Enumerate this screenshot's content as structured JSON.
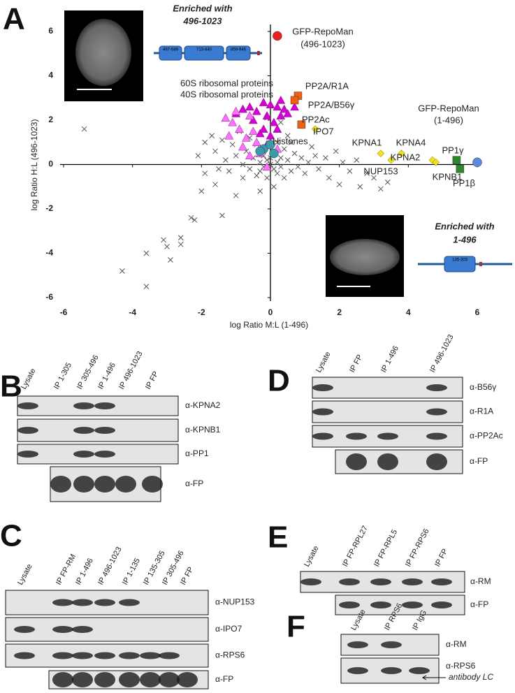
{
  "chart_data": {
    "type": "scatter",
    "xlabel": "log Ratio M:L (1-496)",
    "ylabel": "log Ratio H:L (496-1023)",
    "xlim": [
      -6,
      6
    ],
    "ylim": [
      -6,
      6
    ],
    "xticks": [
      -6,
      -4,
      -2,
      0,
      2,
      4,
      6
    ],
    "yticks": [
      -6,
      -4,
      -2,
      0,
      2,
      4,
      6
    ],
    "series": [
      {
        "marker": "x",
        "color": "#555555",
        "x": [
          -5.4,
          -4.3,
          -3.6,
          -3.6,
          -3.1,
          -3.0,
          -2.9,
          -2.6,
          -2.6,
          -2.3,
          -2.2,
          -1.4,
          -2.0,
          -1.6,
          -1.2,
          -1.0,
          -0.8,
          -2.1,
          -1.9,
          -1.7,
          -1.6,
          -1.4,
          -1.3,
          -1.1,
          -1.0,
          -0.9,
          -0.8,
          -0.7,
          -0.6,
          -0.6,
          -0.5,
          -0.4,
          -0.4,
          -0.3,
          -0.3,
          -0.2,
          -0.2,
          -0.1,
          -0.1,
          0.0,
          0.0,
          0.1,
          0.1,
          0.2,
          0.2,
          0.3,
          0.3,
          0.4,
          0.4,
          0.5,
          0.6,
          0.7,
          0.8,
          0.9,
          1.0,
          1.1,
          1.3,
          1.4,
          1.6,
          1.7,
          1.9,
          2.0,
          2.1,
          2.3,
          2.5,
          2.6,
          2.8,
          3.0,
          3.2,
          3.4,
          -1.9,
          -1.5,
          0.2,
          0.5,
          -0.3,
          0.1,
          1.2,
          0.6,
          -0.1,
          0.3
        ],
        "values": [
          1.6,
          -4.8,
          -4.0,
          -5.5,
          -3.4,
          -3.7,
          -4.3,
          -3.6,
          -3.3,
          -2.4,
          -2.5,
          -2.3,
          -1.2,
          -0.9,
          -0.3,
          -1.4,
          -0.6,
          0.4,
          1.0,
          1.3,
          0.6,
          1.1,
          0.2,
          0.9,
          0.4,
          1.5,
          0.0,
          0.6,
          1.2,
          -0.2,
          0.3,
          -0.5,
          0.9,
          0.1,
          -0.3,
          0.4,
          -0.1,
          0.2,
          -0.6,
          0.0,
          0.3,
          -0.2,
          0.6,
          0.1,
          -0.4,
          0.3,
          -0.1,
          0.7,
          -0.6,
          0.2,
          -0.3,
          0.5,
          -0.1,
          0.3,
          -0.4,
          0.1,
          0.4,
          -0.2,
          0.3,
          -0.6,
          0.6,
          -0.9,
          0.1,
          -0.3,
          0.2,
          -1.0,
          -0.4,
          -0.6,
          -1.1,
          -0.8,
          -0.4,
          -0.2,
          1.0,
          1.3,
          -1.2,
          -1.0,
          0.8,
          1.0,
          2.1,
          1.9
        ]
      },
      {
        "marker": "triangle",
        "color": "#d400d4",
        "x": [
          -0.8,
          -0.6,
          -0.4,
          -0.2,
          0.0,
          0.2,
          0.4,
          0.5,
          0.7,
          -0.1,
          0.3,
          -0.5,
          0.1,
          -0.2,
          0.0,
          -0.1,
          0.2,
          -0.3,
          0.3,
          -1.0
        ],
        "values": [
          2.5,
          2.6,
          2.4,
          2.8,
          2.7,
          2.6,
          2.5,
          2.3,
          2.6,
          2.2,
          2.2,
          2.0,
          1.9,
          1.6,
          1.3,
          0.9,
          1.6,
          1.4,
          2.9,
          2.3
        ]
      },
      {
        "marker": "triangle",
        "color": "#ff70ff",
        "x": [
          -1.3,
          -1.1,
          -0.9,
          -1.2,
          -0.7,
          -0.5,
          -0.8,
          -0.4,
          -0.6,
          -0.3,
          -0.1,
          0.2,
          -1.0,
          -0.6
        ],
        "values": [
          2.1,
          1.9,
          1.6,
          1.3,
          1.2,
          1.5,
          0.8,
          1.0,
          0.4,
          0.5,
          -0.1,
          0.7,
          2.4,
          2.2
        ]
      },
      {
        "marker": "circle",
        "color": "#3a9aaa",
        "x": [
          -0.2,
          -0.3,
          0.0,
          0.1
        ],
        "values": [
          0.7,
          0.6,
          0.9,
          0.5
        ]
      },
      {
        "marker": "circle",
        "color": "#e82020",
        "x": [
          0.2
        ],
        "values": [
          5.8
        ]
      },
      {
        "marker": "square",
        "color": "#f06010",
        "x": [
          0.8,
          0.7,
          0.9
        ],
        "values": [
          3.1,
          2.9,
          1.8
        ]
      },
      {
        "marker": "diamond",
        "color": "#f0e020",
        "x": [
          1.3,
          3.2,
          3.8,
          3.5,
          4.7,
          4.8
        ],
        "values": [
          1.6,
          0.5,
          0.5,
          0.2,
          0.2,
          0.1
        ]
      },
      {
        "marker": "square",
        "color": "#2a8a2a",
        "x": [
          5.4,
          5.5
        ],
        "values": [
          0.2,
          -0.2
        ]
      },
      {
        "marker": "circle",
        "color": "#5a8ae0",
        "x": [
          6.0
        ],
        "values": [
          0.1
        ]
      }
    ],
    "annotations": [
      {
        "text": "GFP-RepoMan",
        "color": "#e02020"
      },
      {
        "text": "(496-1023)",
        "color": "#e02020"
      },
      {
        "text": "PP2A/R1A",
        "color": "#e8590c"
      },
      {
        "text": "PP2A/B56γ",
        "color": "#e8590c"
      },
      {
        "text": "PP2Ac",
        "color": "#e8590c"
      },
      {
        "text": "IPO7",
        "color": "#a89a10"
      },
      {
        "text": "Histones",
        "color": "#2a8a9a"
      },
      {
        "text": "GFP-RepoMan",
        "color": "#1f5fbf"
      },
      {
        "text": "(1-496)",
        "color": "#1f5fbf"
      },
      {
        "text": "KPNA1",
        "color": "#a89a10"
      },
      {
        "text": "KPNA4",
        "color": "#a89a10"
      },
      {
        "text": "KPNA2",
        "color": "#a89a10"
      },
      {
        "text": "NUP153",
        "color": "#a89a10"
      },
      {
        "text": "KPNB1",
        "color": "#a89a10"
      },
      {
        "text": "PP1γ",
        "color": "#2a9a2a"
      },
      {
        "text": "PP1β",
        "color": "#2a9a2a"
      },
      {
        "text": "60S ribosomal proteins",
        "color": "#a020a0"
      },
      {
        "text": "40S ribosomal proteins",
        "color": "#e060e0"
      }
    ]
  },
  "panel_a": {
    "letter": "A",
    "inset_top": {
      "heading": "Enriched with",
      "construct": "496-1023",
      "domains": [
        "497-589",
        "713-840",
        "859-946"
      ]
    },
    "inset_bottom": {
      "heading": "Enriched with",
      "construct": "1-496",
      "domains": [
        "135-303"
      ]
    }
  },
  "panels": [
    {
      "letter": "B",
      "lanes": [
        "Lysate",
        "IP 1-305",
        "IP 305-496",
        "IP 1-496",
        "IP 496-1023",
        "IP FP"
      ],
      "antibodies": [
        "α-KPNA2",
        "α-KPNB1",
        "α-PP1",
        "α-FP"
      ]
    },
    {
      "letter": "C",
      "lanes": [
        "Lysate",
        "IP FP-RM",
        "IP 1-496",
        "IP 496-1023",
        "IP 1-135",
        "IP 135-305",
        "IP 305-496",
        "IP FP"
      ],
      "antibodies": [
        "α-NUP153",
        "α-IPO7",
        "α-RPS6",
        "α-FP"
      ]
    },
    {
      "letter": "D",
      "lanes": [
        "Lysate",
        "IP FP",
        "IP 1-496",
        "IP 496-1023"
      ],
      "antibodies": [
        "α-B56γ",
        "α-R1A",
        "α-PP2Ac",
        "α-FP"
      ]
    },
    {
      "letter": "E",
      "lanes": [
        "Lysate",
        "IP FP-RPL27",
        "IP FP-RPL5",
        "IP FP-RPS6",
        "IP FP"
      ],
      "antibodies": [
        "α-RM",
        "α-FP"
      ]
    },
    {
      "letter": "F",
      "lanes": [
        "Lysate",
        "IP RPS6",
        "IP IgG"
      ],
      "antibodies": [
        "α-RM",
        "α-RPS6"
      ],
      "note": "antibody LC"
    }
  ]
}
